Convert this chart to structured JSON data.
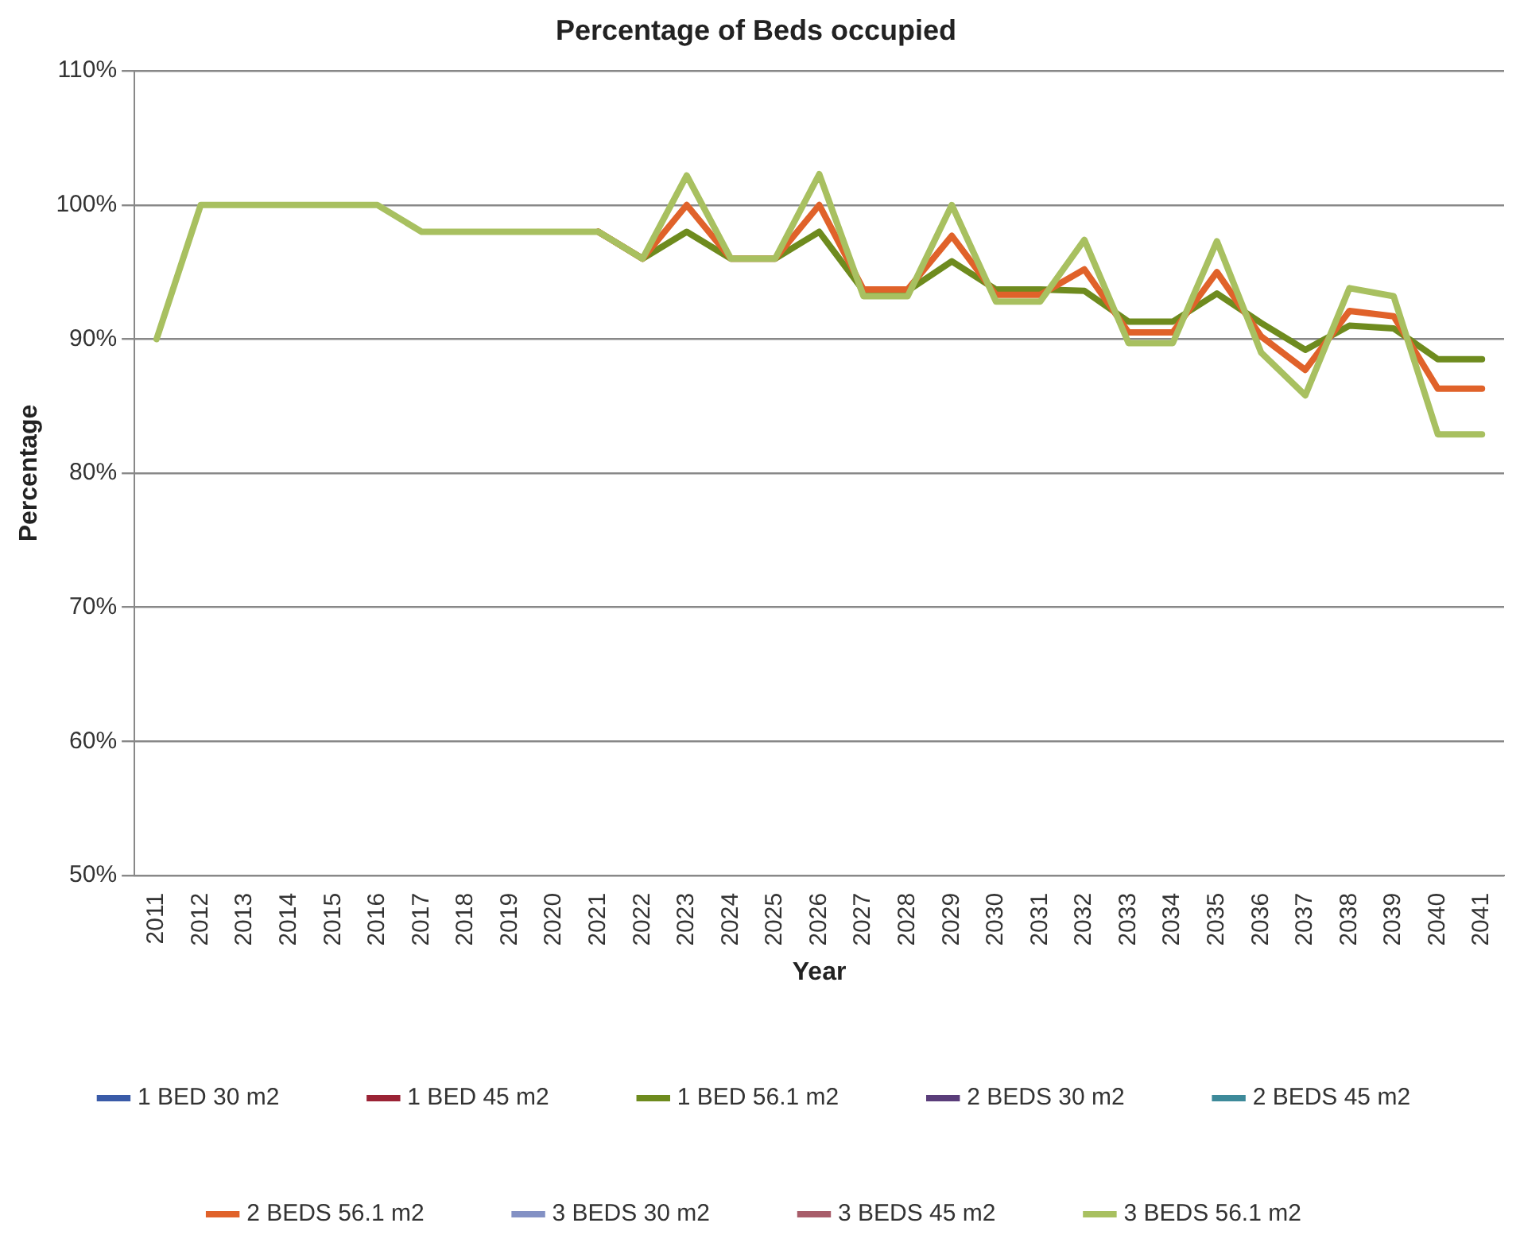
{
  "chart_data": {
    "type": "line",
    "title": "Percentage of Beds occupied",
    "xlabel": "Year",
    "ylabel": "Percentage",
    "categories": [
      "2011",
      "2012",
      "2013",
      "2014",
      "2015",
      "2016",
      "2017",
      "2018",
      "2019",
      "2020",
      "2021",
      "2022",
      "2023",
      "2024",
      "2025",
      "2026",
      "2027",
      "2028",
      "2029",
      "2030",
      "2031",
      "2032",
      "2033",
      "2034",
      "2035",
      "2036",
      "2037",
      "2038",
      "2039",
      "2040",
      "2041"
    ],
    "ylim": [
      50,
      110
    ],
    "yticks": [
      {
        "value": 50,
        "label": "50%"
      },
      {
        "value": 60,
        "label": "60%"
      },
      {
        "value": 70,
        "label": "70%"
      },
      {
        "value": 80,
        "label": "80%"
      },
      {
        "value": 90,
        "label": "90%"
      },
      {
        "value": 100,
        "label": "100%"
      },
      {
        "value": 110,
        "label": "110%"
      }
    ],
    "grid": "y",
    "legend": "bottom",
    "marker": "none",
    "line_style": "solid",
    "series": [
      {
        "name": "1 BED 30 m2",
        "color": "#3a5ba8",
        "values": [
          null,
          null,
          null,
          null,
          null,
          null,
          null,
          null,
          null,
          null,
          null,
          null,
          null,
          null,
          null,
          null,
          null,
          null,
          null,
          null,
          null,
          null,
          null,
          null,
          null,
          null,
          null,
          null,
          null,
          null,
          null
        ]
      },
      {
        "name": "1 BED 45 m2",
        "color": "#9b2335",
        "values": [
          null,
          null,
          null,
          null,
          null,
          null,
          null,
          null,
          null,
          null,
          null,
          null,
          null,
          null,
          null,
          null,
          null,
          null,
          null,
          null,
          null,
          null,
          null,
          null,
          null,
          null,
          null,
          null,
          null,
          null,
          null
        ]
      },
      {
        "name": "2 BEDS 30 m2",
        "color": "#5a3d7a",
        "values": [
          null,
          null,
          null,
          null,
          null,
          null,
          null,
          null,
          null,
          null,
          null,
          null,
          null,
          null,
          null,
          null,
          null,
          null,
          null,
          null,
          null,
          null,
          null,
          null,
          null,
          null,
          null,
          null,
          null,
          null,
          null
        ]
      },
      {
        "name": "2 BEDS 45 m2",
        "color": "#3d8a9a",
        "values": [
          null,
          null,
          null,
          null,
          null,
          null,
          null,
          null,
          null,
          null,
          null,
          null,
          null,
          null,
          null,
          null,
          null,
          null,
          null,
          null,
          null,
          null,
          null,
          null,
          null,
          null,
          null,
          null,
          null,
          null,
          null
        ]
      },
      {
        "name": "3 BEDS 30 m2",
        "color": "#8391c4",
        "values": [
          null,
          null,
          null,
          null,
          null,
          null,
          null,
          null,
          null,
          null,
          null,
          null,
          null,
          null,
          null,
          null,
          null,
          null,
          null,
          null,
          null,
          null,
          null,
          null,
          null,
          null,
          null,
          null,
          null,
          null,
          null
        ]
      },
      {
        "name": "3 BEDS 45 m2",
        "color": "#a85d6a",
        "values": [
          null,
          null,
          null,
          null,
          null,
          null,
          null,
          null,
          null,
          null,
          null,
          null,
          null,
          null,
          null,
          null,
          null,
          null,
          null,
          null,
          null,
          null,
          null,
          null,
          null,
          null,
          null,
          null,
          null,
          null,
          null
        ]
      },
      {
        "name": "1 BED 56.1 m2",
        "color": "#6e8b1e",
        "values": [
          null,
          null,
          null,
          null,
          null,
          null,
          null,
          null,
          null,
          null,
          98,
          96,
          98,
          96,
          96,
          98,
          93.6,
          93.6,
          95.8,
          93.7,
          93.7,
          93.6,
          91.3,
          91.3,
          93.4,
          91.2,
          89.2,
          91,
          90.8,
          88.5,
          88.5
        ]
      },
      {
        "name": "2 BEDS 56.1 m2",
        "color": "#e0622a",
        "values": [
          null,
          null,
          null,
          null,
          null,
          null,
          null,
          null,
          null,
          null,
          98,
          96,
          100,
          96,
          96,
          100,
          93.7,
          93.7,
          97.7,
          93.3,
          93.3,
          95.2,
          90.5,
          90.5,
          95,
          90.2,
          87.7,
          92.1,
          91.7,
          86.3,
          86.3
        ]
      },
      {
        "name": "3 BEDS 56.1 m2",
        "color": "#a8c060",
        "values": [
          90,
          100,
          100,
          100,
          100,
          100,
          98,
          98,
          98,
          98,
          98,
          96,
          102.2,
          96,
          96,
          102.3,
          93.2,
          93.2,
          100,
          92.8,
          92.8,
          97.4,
          89.7,
          89.7,
          97.3,
          89,
          85.8,
          93.8,
          93.2,
          82.9,
          82.9
        ]
      }
    ]
  }
}
